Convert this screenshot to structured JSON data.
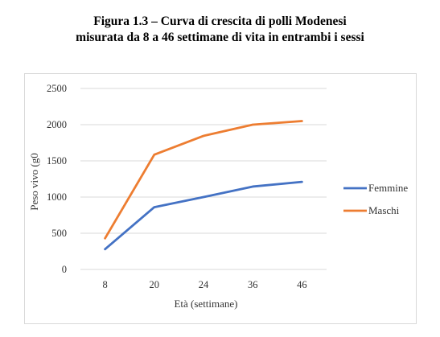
{
  "title_line1": "Figura 1.3 – Curva di crescita di polli Modenesi",
  "title_line2": "misurata da 8 a 46 settimane di vita in entrambi i sessi",
  "chart_data": {
    "type": "line",
    "categories": [
      "8",
      "20",
      "24",
      "36",
      "46"
    ],
    "series": [
      {
        "name": "Femmine",
        "color": "#4472C4",
        "values": [
          280,
          860,
          1000,
          1145,
          1210
        ]
      },
      {
        "name": "Maschi",
        "color": "#ED7D31",
        "values": [
          430,
          1585,
          1845,
          2000,
          2050
        ]
      }
    ],
    "xlabel": "Età (settimane)",
    "ylabel": "Peso vivo (g0",
    "ylim": [
      0,
      2500
    ],
    "yticks": [
      0,
      500,
      1000,
      1500,
      2000,
      2500
    ],
    "grid": true,
    "legend_position": "right"
  }
}
